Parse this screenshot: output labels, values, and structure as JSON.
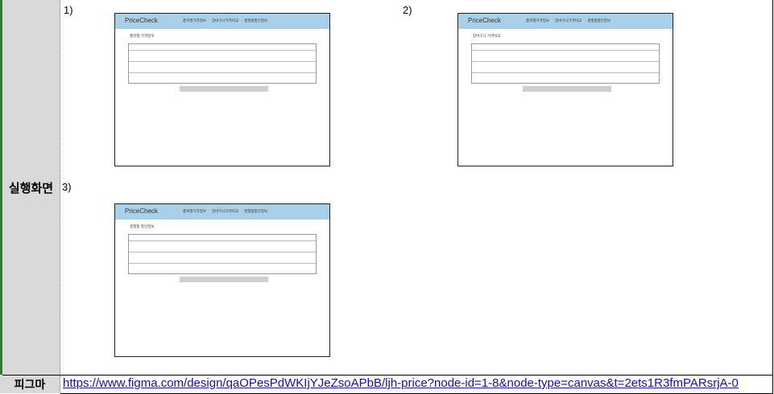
{
  "label": "실행화면",
  "figma_label": "피그마",
  "figma_url": "https://www.figma.com/design/qaOPesPdWKIjYJeZsoAPbB/ljh-price?node-id=1-8&node-type=canvas&t=2ets1R3fmPARsrjA-0",
  "screens": [
    {
      "num": "1)",
      "title": "품목별 가격정보"
    },
    {
      "num": "2)",
      "title": "장바구니 가격비교"
    },
    {
      "num": "3)",
      "title": "생필품 할인정보"
    }
  ],
  "mockup": {
    "logo": "PriceCheck",
    "nav": [
      "품목별가격정보",
      "장바구니가격비교",
      "생필품할인정보"
    ]
  }
}
